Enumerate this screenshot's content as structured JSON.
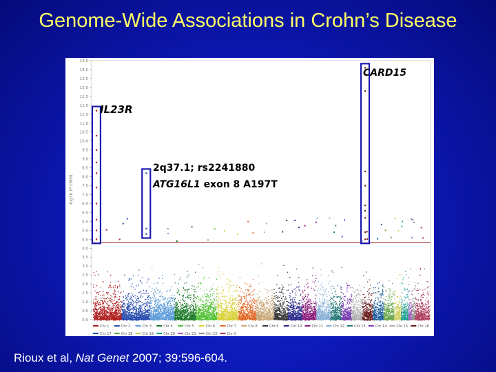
{
  "title": "Genome-Wide Associations in Crohn’s Disease",
  "citation": {
    "authors": "Rioux et al,",
    "journal": "Nat Genet",
    "details": "2007; 39:596-604."
  },
  "chart_data": {
    "type": "scatter",
    "title": "",
    "ylabel": "-log10 (P CMH)",
    "ylim": [
      0.0,
      14.5
    ],
    "yticks": [
      "0.0",
      "0.5",
      "1.0",
      "1.5",
      "2.0",
      "2.5",
      "3.0",
      "3.5",
      "4.0",
      "4.5",
      "5.0",
      "5.5",
      "6.0",
      "6.5",
      "7.0",
      "7.5",
      "8.0",
      "8.5",
      "9.0",
      "9.5",
      "10.0",
      "10.5",
      "11.0",
      "11.5",
      "12.0",
      "12.5",
      "13.0",
      "13.5",
      "14.0",
      "14.5"
    ],
    "threshold": 4.3,
    "legend_position": "bottom",
    "chromosomes": [
      {
        "name": "Chr 1",
        "color": "#b02020",
        "weight": 8
      },
      {
        "name": "Chr 2",
        "color": "#2a4fb0",
        "weight": 8
      },
      {
        "name": "Chr 3",
        "color": "#5a9ad8",
        "weight": 7
      },
      {
        "name": "Chr 4",
        "color": "#1f7a2a",
        "weight": 6
      },
      {
        "name": "Chr 5",
        "color": "#57c23a",
        "weight": 6
      },
      {
        "name": "Chr 6",
        "color": "#d9d23a",
        "weight": 6
      },
      {
        "name": "Chr 7",
        "color": "#e26b2a",
        "weight": 5
      },
      {
        "name": "Chr 8",
        "color": "#c8a878",
        "weight": 5
      },
      {
        "name": "Chr 9",
        "color": "#3a3a3a",
        "weight": 4
      },
      {
        "name": "Chr 10",
        "color": "#2b2b8a",
        "weight": 4
      },
      {
        "name": "Chr 11",
        "color": "#8a1c7a",
        "weight": 4
      },
      {
        "name": "Chr 12",
        "color": "#8ab0d8",
        "weight": 4
      },
      {
        "name": "Chr 13",
        "color": "#287a7a",
        "weight": 3
      },
      {
        "name": "Chr 14",
        "color": "#7a3fb0",
        "weight": 3
      },
      {
        "name": "Chr 15",
        "color": "#b0b0b0",
        "weight": 3
      },
      {
        "name": "Chr 16",
        "color": "#6b2020",
        "weight": 3
      },
      {
        "name": "Chr 17",
        "color": "#2060a0",
        "weight": 3
      },
      {
        "name": "Chr 18",
        "color": "#6aa84f",
        "weight": 3
      },
      {
        "name": "Chr 19",
        "color": "#d0d060",
        "weight": 2
      },
      {
        "name": "Chr 20",
        "color": "#20a090",
        "weight": 2
      },
      {
        "name": "Chr 21",
        "color": "#a060c0",
        "weight": 1
      },
      {
        "name": "Chr 22",
        "color": "#909090",
        "weight": 1
      },
      {
        "name": "Chr X",
        "color": "#b04060",
        "weight": 4
      }
    ],
    "hits": [
      {
        "chr": "Chr 1",
        "pos": 0.12,
        "values": [
          11.7,
          10.3,
          9.5,
          8.8,
          8.2,
          7.4,
          6.5,
          5.6,
          5.0,
          4.5
        ]
      },
      {
        "chr": "Chr 2",
        "pos": 0.88,
        "values": [
          8.2,
          5.1,
          4.8
        ]
      },
      {
        "chr": "Chr 16",
        "pos": 0.3,
        "values": [
          14.1,
          12.8,
          8.3,
          7.5,
          6.4,
          6.1,
          5.7,
          4.9,
          4.5
        ]
      }
    ],
    "annotations": [
      {
        "gene": "CARD15",
        "extra": ""
      },
      {
        "gene": "IL23R",
        "extra": ""
      },
      {
        "locus": "2q37.1; rs2241880",
        "gene": "ATG16L1",
        "extra": "exon 8 A197T"
      }
    ]
  }
}
